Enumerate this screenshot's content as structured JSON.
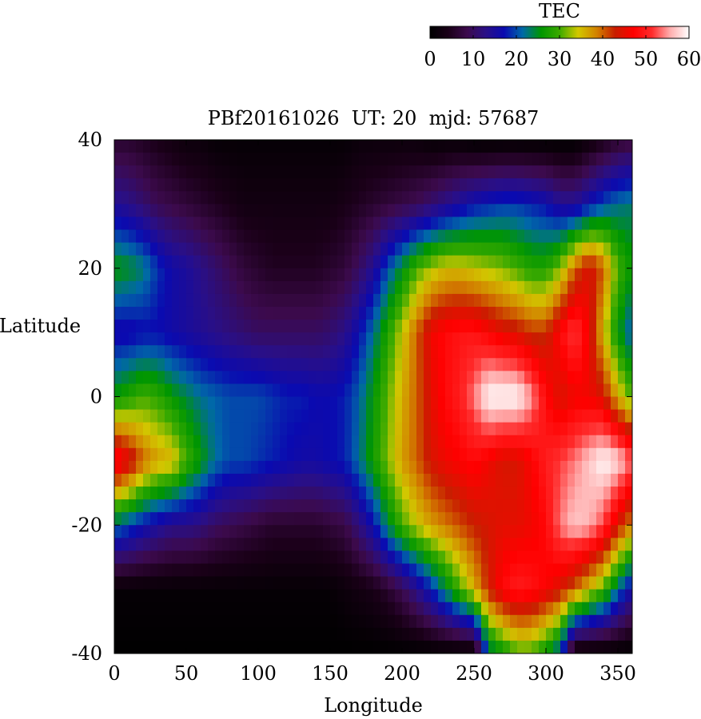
{
  "chart_data": {
    "type": "heatmap",
    "title": "PBf20161026  UT: 20  mjd: 57687",
    "xlabel": "Longitude",
    "ylabel": "Latitude",
    "xlim": [
      0,
      360
    ],
    "ylim": [
      -40,
      40
    ],
    "x_ticks": [
      0,
      50,
      100,
      150,
      200,
      250,
      300,
      350
    ],
    "y_ticks": [
      -40,
      -20,
      0,
      20,
      40
    ],
    "grid": false,
    "colorbar": {
      "label": "TEC",
      "range": [
        0,
        60
      ],
      "ticks": [
        0,
        10,
        20,
        30,
        40,
        50,
        60
      ],
      "placement": "top-right",
      "colors": [
        "#000000",
        "#1a0018",
        "#3c0a4c",
        "#2a0f86",
        "#0a0ab0",
        "#0068a8",
        "#009600",
        "#3caa00",
        "#d2c800",
        "#d28200",
        "#c81e00",
        "#ff0000",
        "#ff2b2b",
        "#ffb0b0",
        "#ffffff"
      ]
    },
    "x_centers": [
      0,
      10,
      20,
      30,
      40,
      50,
      60,
      70,
      80,
      90,
      100,
      110,
      120,
      130,
      140,
      150,
      160,
      170,
      180,
      190,
      200,
      210,
      220,
      230,
      240,
      250,
      260,
      270,
      280,
      290,
      300,
      310,
      320,
      330,
      340,
      350,
      360
    ],
    "y_centers": [
      40,
      30,
      20,
      10,
      0,
      -10,
      -20,
      -30,
      -40
    ],
    "values": [
      [
        6,
        6,
        5,
        4,
        3,
        2,
        2,
        1,
        1,
        1,
        1,
        1,
        1,
        1,
        1,
        1,
        1,
        2,
        2,
        2,
        2,
        2,
        1,
        1,
        1,
        0,
        0,
        0,
        0,
        0,
        0,
        0,
        0,
        2,
        4,
        6,
        7
      ],
      [
        14,
        13,
        11,
        9,
        8,
        7,
        6,
        5,
        4,
        3,
        3,
        3,
        3,
        3,
        3,
        3,
        4,
        5,
        6,
        7,
        8,
        9,
        11,
        13,
        15,
        17,
        18,
        19,
        19,
        18,
        17,
        14,
        14,
        17,
        20,
        22,
        23
      ],
      [
        26,
        25,
        23,
        19,
        16,
        15,
        13,
        11,
        9,
        7,
        6,
        5,
        5,
        5,
        5,
        6,
        7,
        10,
        14,
        20,
        25,
        30,
        33,
        35,
        35,
        34,
        33,
        32,
        30,
        28,
        28,
        32,
        40,
        45,
        40,
        30,
        26
      ],
      [
        16,
        16,
        17,
        17,
        16,
        15,
        14,
        13,
        12,
        11,
        10,
        10,
        10,
        10,
        10,
        11,
        13,
        17,
        22,
        28,
        34,
        40,
        46,
        48,
        49,
        49,
        47,
        45,
        44,
        42,
        42,
        48,
        52,
        46,
        35,
        26,
        20
      ],
      [
        26,
        28,
        30,
        29,
        26,
        24,
        22,
        21,
        20,
        20,
        20,
        19,
        18,
        18,
        17,
        17,
        18,
        21,
        26,
        31,
        36,
        40,
        45,
        48,
        50,
        54,
        60,
        60,
        60,
        55,
        48,
        44,
        46,
        46,
        44,
        36,
        30
      ],
      [
        50,
        46,
        40,
        37,
        36,
        30,
        26,
        22,
        20,
        20,
        19,
        18,
        17,
        16,
        16,
        17,
        18,
        22,
        27,
        32,
        37,
        40,
        44,
        46,
        47,
        48,
        46,
        44,
        44,
        47,
        50,
        52,
        54,
        57,
        60,
        58,
        53
      ],
      [
        22,
        20,
        17,
        15,
        13,
        13,
        12,
        10,
        9,
        8,
        7,
        6,
        6,
        6,
        6,
        7,
        8,
        12,
        17,
        24,
        30,
        34,
        37,
        39,
        41,
        43,
        44,
        45,
        45,
        46,
        48,
        54,
        57,
        56,
        52,
        44,
        38
      ],
      [
        1,
        1,
        1,
        1,
        1,
        1,
        1,
        1,
        1,
        1,
        1,
        1,
        1,
        1,
        1,
        1,
        2,
        3,
        4,
        6,
        9,
        13,
        18,
        24,
        30,
        36,
        43,
        48,
        50,
        49,
        47,
        44,
        40,
        35,
        30,
        22,
        15
      ],
      [
        0,
        0,
        0,
        0,
        0,
        0,
        0,
        0,
        0,
        0,
        0,
        0,
        0,
        0,
        0,
        0,
        0,
        0,
        0,
        0,
        0,
        0,
        0,
        0,
        0,
        0,
        22,
        26,
        30,
        30,
        26,
        20,
        0,
        0,
        0,
        0,
        0
      ]
    ]
  }
}
